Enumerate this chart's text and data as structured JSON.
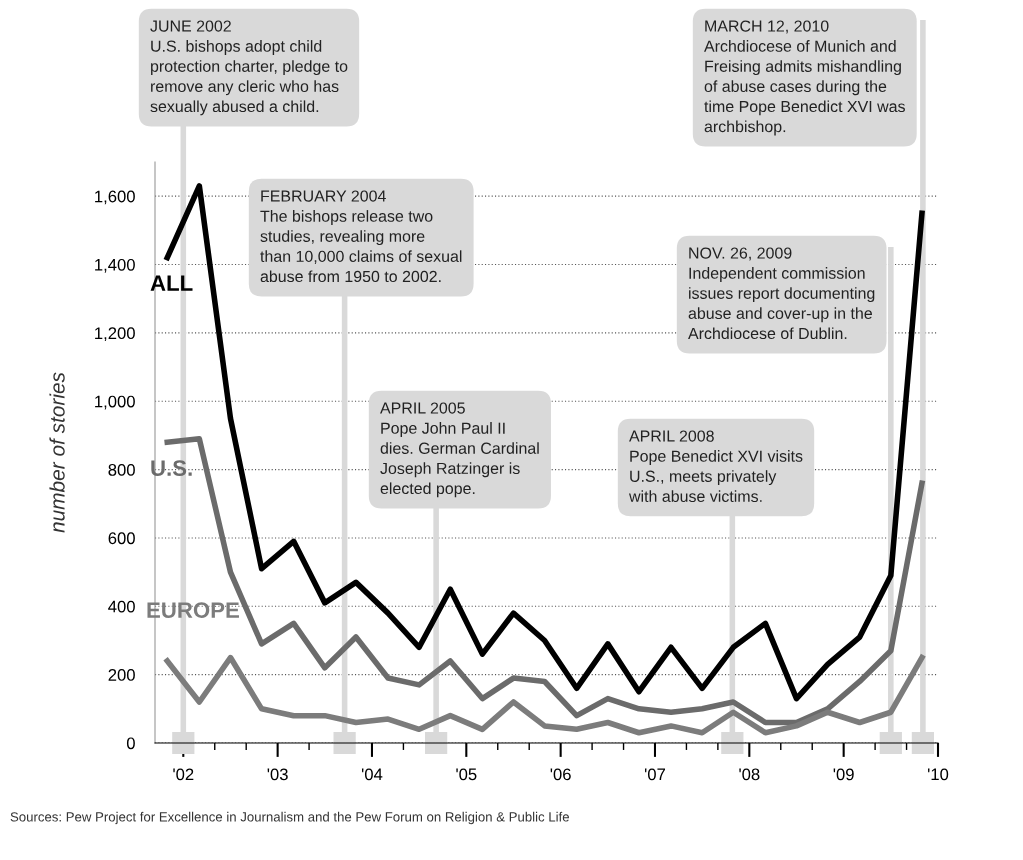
{
  "chart_data": {
    "type": "line",
    "ylabel": "number of stories",
    "x": [
      2001.83,
      2002.17,
      2002.5,
      2002.83,
      2003.17,
      2003.5,
      2003.83,
      2004.17,
      2004.5,
      2004.83,
      2005.17,
      2005.5,
      2005.83,
      2006.17,
      2006.5,
      2006.83,
      2007.17,
      2007.5,
      2007.83,
      2008.17,
      2008.5,
      2008.83,
      2009.17,
      2009.5,
      2009.83
    ],
    "series": [
      {
        "name": "ALL",
        "color": "#000000",
        "values": [
          1420,
          1630,
          950,
          510,
          590,
          410,
          470,
          380,
          280,
          450,
          260,
          380,
          300,
          160,
          290,
          150,
          280,
          160,
          280,
          350,
          130,
          230,
          310,
          490,
          1550
        ]
      },
      {
        "name": "U.S.",
        "color": "#6b6b6b",
        "values": [
          880,
          890,
          500,
          290,
          350,
          220,
          310,
          190,
          170,
          240,
          130,
          190,
          180,
          80,
          130,
          100,
          90,
          100,
          120,
          60,
          60,
          100,
          180,
          270,
          760
        ]
      },
      {
        "name": "EUROPE",
        "color": "#7c7c7c",
        "values": [
          240,
          120,
          250,
          100,
          80,
          80,
          60,
          70,
          40,
          80,
          40,
          120,
          50,
          40,
          60,
          30,
          50,
          30,
          90,
          30,
          50,
          90,
          60,
          90,
          250
        ]
      }
    ],
    "xlim": [
      2001.7,
      2010
    ],
    "xticks": [
      {
        "value": 2002,
        "label": "'02"
      },
      {
        "value": 2003,
        "label": "'03"
      },
      {
        "value": 2004,
        "label": "'04"
      },
      {
        "value": 2005,
        "label": "'05"
      },
      {
        "value": 2006,
        "label": "'06"
      },
      {
        "value": 2007,
        "label": "'07"
      },
      {
        "value": 2008,
        "label": "'08"
      },
      {
        "value": 2009,
        "label": "'09"
      },
      {
        "value": 2010,
        "label": "'10"
      }
    ],
    "ylim": [
      0,
      1700
    ],
    "yticks": [
      0,
      200,
      400,
      600,
      800,
      {
        "value": 1000,
        "label": "1,000"
      },
      {
        "value": 1200,
        "label": "1,200"
      },
      {
        "value": 1400,
        "label": "1,400"
      },
      {
        "value": 1600,
        "label": "1,600"
      }
    ],
    "grid": "y",
    "line_style": "solid",
    "marker": "none",
    "legend": false,
    "ref_lines": [
      {
        "axis": "x",
        "value": 2002.0,
        "color": "#d9d9d9",
        "label": "JUNE 2002\nU.S. bishops adopt child\nprotection charter, pledge to\nremove any cleric who has\nsexually abused a child."
      },
      {
        "axis": "x",
        "value": 2003.71,
        "color": "#d9d9d9",
        "label": "FEBRUARY 2004\nThe bishops release two\nstudies, revealing more\nthan 10,000 claims of sexual\nabuse from 1950 to 2002."
      },
      {
        "axis": "x",
        "value": 2004.68,
        "color": "#d9d9d9",
        "label": "APRIL 2005\nPope John Paul II\ndies. German Cardinal\nJoseph Ratzinger is\nelected pope."
      },
      {
        "axis": "x",
        "value": 2007.82,
        "color": "#d9d9d9",
        "label": "APRIL 2008\nPope Benedict XVI visits\nU.S., meets privately\nwith abuse victims."
      },
      {
        "axis": "x",
        "value": 2009.5,
        "color": "#d9d9d9",
        "label": "NOV. 26, 2009\nIndependent commission\nissues report documenting\nabuse and cover-up in the\nArchdiocese of Dublin."
      },
      {
        "axis": "x",
        "value": 2009.84,
        "color": "#d9d9d9",
        "label": "MARCH 12, 2010\nArchdiocese of Munich and\nFreising admits mishandling\nof abuse cases during the\ntime Pope Benedict XVI was\narchbishop."
      }
    ],
    "annotations": [
      "Sources: Pew Project for Excellence in Journalism and the Pew Forum on Religion & Public Life"
    ]
  }
}
